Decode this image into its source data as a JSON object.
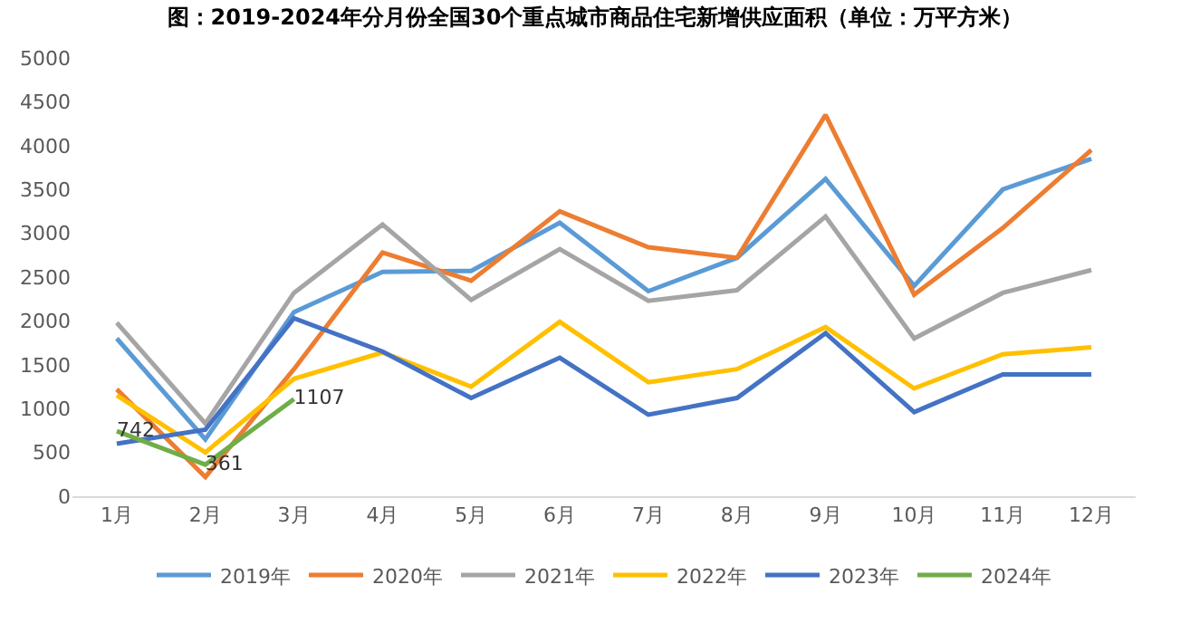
{
  "chart_data": {
    "type": "line",
    "title": "图：2019-2024年分月份全国30个重点城市商品住宅新增供应面积（单位：万平方米）",
    "categories": [
      "1月",
      "2月",
      "3月",
      "4月",
      "5月",
      "6月",
      "7月",
      "8月",
      "9月",
      "10月",
      "11月",
      "12月"
    ],
    "series": [
      {
        "name": "2019年",
        "color": "#5b9bd5",
        "values": [
          1800,
          650,
          2100,
          2560,
          2570,
          3120,
          2340,
          2720,
          3620,
          2400,
          3500,
          3850
        ]
      },
      {
        "name": "2020年",
        "color": "#ed7d31",
        "values": [
          1220,
          220,
          1450,
          2780,
          2460,
          3250,
          2840,
          2720,
          4350,
          2300,
          3060,
          3950
        ]
      },
      {
        "name": "2021年",
        "color": "#a5a5a5",
        "values": [
          1980,
          830,
          2320,
          3100,
          2240,
          2820,
          2230,
          2350,
          3190,
          1800,
          2320,
          2580
        ]
      },
      {
        "name": "2022年",
        "color": "#ffc000",
        "values": [
          1150,
          500,
          1340,
          1640,
          1250,
          1990,
          1300,
          1450,
          1930,
          1230,
          1620,
          1700
        ]
      },
      {
        "name": "2023年",
        "color": "#4472c4",
        "values": [
          600,
          760,
          2030,
          1650,
          1120,
          1580,
          930,
          1120,
          1860,
          960,
          1390,
          1390
        ]
      },
      {
        "name": "2024年",
        "color": "#70ad47",
        "values": [
          742,
          361,
          1107,
          null,
          null,
          null,
          null,
          null,
          null,
          null,
          null,
          null
        ],
        "value_labels": [
          "742",
          "361",
          "1107",
          null,
          null,
          null,
          null,
          null,
          null,
          null,
          null,
          null
        ]
      }
    ],
    "ylim": [
      0,
      5000
    ],
    "yticks": [
      0,
      500,
      1000,
      1500,
      2000,
      2500,
      3000,
      3500,
      4000,
      4500,
      5000
    ],
    "grid": false,
    "legend": "bottom",
    "marker": "none",
    "line_style": "solid"
  }
}
